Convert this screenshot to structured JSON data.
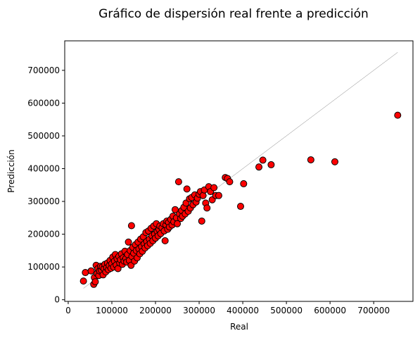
{
  "chart_data": {
    "type": "scatter",
    "title": "Gráfico de dispersión real frente a predicción",
    "xlabel": "Real",
    "ylabel": "Predicción",
    "xlim": [
      -8000,
      790000
    ],
    "ylim": [
      -5000,
      790000
    ],
    "xticks": [
      0,
      100000,
      200000,
      300000,
      400000,
      500000,
      600000,
      700000
    ],
    "xtick_labels": [
      "0",
      "100000",
      "200000",
      "300000",
      "400000",
      "500000",
      "600000",
      "700000"
    ],
    "yticks": [
      0,
      100000,
      200000,
      300000,
      400000,
      500000,
      600000,
      700000
    ],
    "ytick_labels": [
      "0",
      "100000",
      "200000",
      "300000",
      "400000",
      "500000",
      "600000",
      "700000"
    ],
    "grid": false,
    "point_color": "#ff0000",
    "point_edge_color": "#000000",
    "reference_line": {
      "from": [
        34900,
        34900
      ],
      "to": [
        755000,
        755000
      ],
      "color": "#808080"
    },
    "points": [
      [
        34900,
        57000
      ],
      [
        39300,
        83000
      ],
      [
        52500,
        88000
      ],
      [
        58500,
        47000
      ],
      [
        60000,
        68000
      ],
      [
        62000,
        55000
      ],
      [
        64000,
        105000
      ],
      [
        66000,
        80000
      ],
      [
        68000,
        95000
      ],
      [
        70000,
        74000
      ],
      [
        72000,
        88000
      ],
      [
        74000,
        102000
      ],
      [
        76000,
        90000
      ],
      [
        78000,
        100000
      ],
      [
        80000,
        76000
      ],
      [
        82000,
        95000
      ],
      [
        84000,
        108000
      ],
      [
        86000,
        85000
      ],
      [
        88000,
        98000
      ],
      [
        90000,
        112000
      ],
      [
        92000,
        92000
      ],
      [
        94000,
        104000
      ],
      [
        96000,
        120000
      ],
      [
        98000,
        96000
      ],
      [
        100000,
        110000
      ],
      [
        102000,
        130000
      ],
      [
        104000,
        100000
      ],
      [
        106000,
        118000
      ],
      [
        108000,
        138000
      ],
      [
        110000,
        106000
      ],
      [
        112000,
        125000
      ],
      [
        114000,
        95000
      ],
      [
        116000,
        132000
      ],
      [
        118000,
        112000
      ],
      [
        120000,
        122000
      ],
      [
        122000,
        140000
      ],
      [
        124000,
        108000
      ],
      [
        126000,
        128000
      ],
      [
        128000,
        118000
      ],
      [
        130000,
        148000
      ],
      [
        132000,
        126000
      ],
      [
        134000,
        115000
      ],
      [
        136000,
        138000
      ],
      [
        138000,
        176000
      ],
      [
        140000,
        120000
      ],
      [
        142000,
        150000
      ],
      [
        144000,
        105000
      ],
      [
        145000,
        226000
      ],
      [
        146000,
        132000
      ],
      [
        148000,
        160000
      ],
      [
        150000,
        142000
      ],
      [
        152000,
        118000
      ],
      [
        154000,
        168000
      ],
      [
        156000,
        150000
      ],
      [
        158000,
        128000
      ],
      [
        160000,
        176000
      ],
      [
        162000,
        155000
      ],
      [
        164000,
        140000
      ],
      [
        166000,
        185000
      ],
      [
        168000,
        162000
      ],
      [
        170000,
        148000
      ],
      [
        172000,
        192000
      ],
      [
        174000,
        170000
      ],
      [
        176000,
        158000
      ],
      [
        178000,
        205000
      ],
      [
        180000,
        178000
      ],
      [
        182000,
        165000
      ],
      [
        184000,
        210000
      ],
      [
        186000,
        185000
      ],
      [
        188000,
        172000
      ],
      [
        190000,
        218000
      ],
      [
        192000,
        195000
      ],
      [
        194000,
        180000
      ],
      [
        196000,
        225000
      ],
      [
        198000,
        200000
      ],
      [
        200000,
        188000
      ],
      [
        202000,
        232000
      ],
      [
        204000,
        208000
      ],
      [
        206000,
        195000
      ],
      [
        208000,
        215000
      ],
      [
        210000,
        225000
      ],
      [
        212000,
        202000
      ],
      [
        215000,
        220000
      ],
      [
        218000,
        232000
      ],
      [
        220000,
        210000
      ],
      [
        222000,
        180000
      ],
      [
        224000,
        228000
      ],
      [
        226000,
        240000
      ],
      [
        228000,
        215000
      ],
      [
        230000,
        236000
      ],
      [
        232000,
        222000
      ],
      [
        235000,
        245000
      ],
      [
        238000,
        228000
      ],
      [
        240000,
        255000
      ],
      [
        242000,
        238000
      ],
      [
        245000,
        275000
      ],
      [
        248000,
        250000
      ],
      [
        250000,
        232000
      ],
      [
        253000,
        360000
      ],
      [
        255000,
        262000
      ],
      [
        258000,
        248000
      ],
      [
        260000,
        272000
      ],
      [
        262000,
        255000
      ],
      [
        265000,
        282000
      ],
      [
        268000,
        262000
      ],
      [
        270000,
        295000
      ],
      [
        272000,
        338000
      ],
      [
        275000,
        270000
      ],
      [
        278000,
        308000
      ],
      [
        280000,
        280000
      ],
      [
        283000,
        312000
      ],
      [
        286000,
        290000
      ],
      [
        290000,
        320000
      ],
      [
        293000,
        298000
      ],
      [
        296000,
        310000
      ],
      [
        300000,
        322000
      ],
      [
        303000,
        330000
      ],
      [
        306000,
        240000
      ],
      [
        309000,
        318000
      ],
      [
        312000,
        335000
      ],
      [
        315000,
        295000
      ],
      [
        318000,
        280000
      ],
      [
        322000,
        345000
      ],
      [
        326000,
        330000
      ],
      [
        330000,
        305000
      ],
      [
        334000,
        342000
      ],
      [
        338000,
        318000
      ],
      [
        345000,
        318000
      ],
      [
        360000,
        373000
      ],
      [
        365000,
        370000
      ],
      [
        370000,
        360000
      ],
      [
        395000,
        285000
      ],
      [
        402000,
        354000
      ],
      [
        437000,
        405000
      ],
      [
        446000,
        426000
      ],
      [
        465000,
        412000
      ],
      [
        556000,
        427000
      ],
      [
        611000,
        421000
      ],
      [
        755000,
        563000
      ]
    ]
  }
}
